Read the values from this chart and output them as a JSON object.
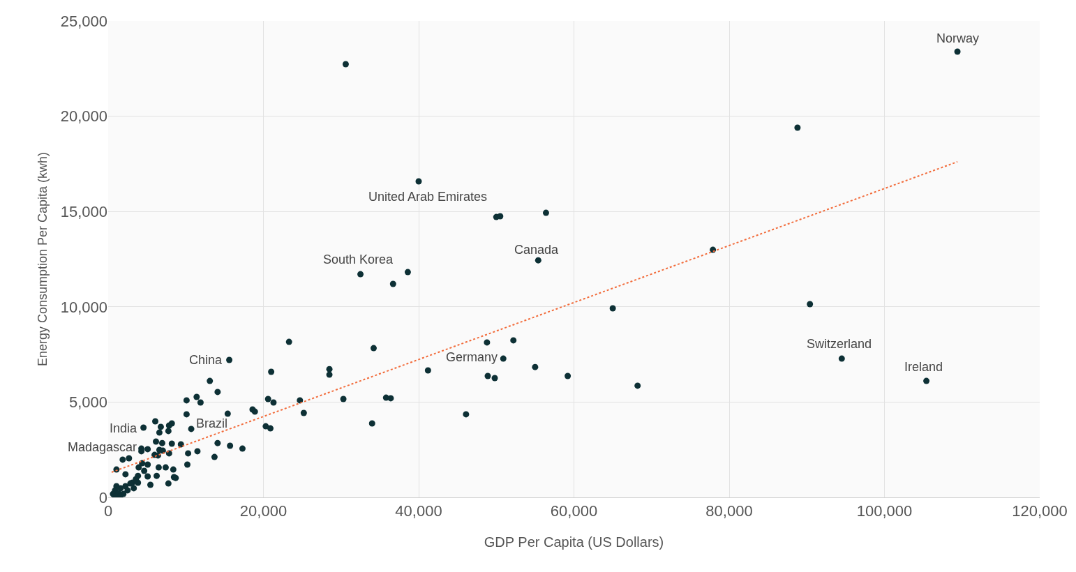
{
  "chart_data": {
    "type": "scatter",
    "xlabel": "GDP Per Capita (US Dollars)",
    "ylabel": "Energy Consumption Per Capita (kwh)",
    "xlim": [
      0,
      120000
    ],
    "ylim": [
      0,
      25000
    ],
    "xticks": [
      0,
      {
        "value": 20000,
        "label": "20,000"
      },
      {
        "value": 40000,
        "label": "40,000"
      },
      {
        "value": 60000,
        "label": "60,000"
      },
      {
        "value": 80000,
        "label": "80,000"
      },
      {
        "value": 100000,
        "label": "100,000"
      },
      {
        "value": 120000,
        "label": "120,000"
      }
    ],
    "yticks": [
      0,
      {
        "value": 5000,
        "label": "5,000"
      },
      {
        "value": 10000,
        "label": "10,000"
      },
      {
        "value": 15000,
        "label": "15,000"
      },
      {
        "value": 20000,
        "label": "20,000"
      },
      {
        "value": 25000,
        "label": "25,000"
      }
    ],
    "grid": true,
    "marker": "circle",
    "series": [
      {
        "color": "#0d3035",
        "x": [
          109400,
          30600,
          88800,
          40000,
          50000,
          50500,
          56400,
          77900,
          55400,
          38600,
          32500,
          36700,
          90400,
          65000,
          23300,
          52200,
          48800,
          34200,
          50900,
          94500,
          15600,
          21000,
          28500,
          28500,
          41200,
          55000,
          48900,
          49800,
          59200,
          105400,
          68200,
          13100,
          14100,
          11400,
          11900,
          10100,
          20600,
          21300,
          24700,
          30300,
          35800,
          36400,
          15400,
          18600,
          18900,
          25200,
          10100,
          46100,
          34000,
          20300,
          20900,
          10700,
          14100,
          17300,
          13700,
          11500,
          10200,
          10300,
          8700,
          4550,
          6070,
          6780,
          6600,
          7760,
          7850,
          8200,
          6160,
          6960,
          8200,
          9370,
          4280,
          5090,
          4280,
          6600,
          7050,
          5980,
          6420,
          7850,
          1870,
          2680,
          1070,
          4370,
          5090,
          3930,
          4640,
          6510,
          7410,
          8390,
          2230,
          3840,
          5090,
          6250,
          8480,
          5440,
          7760,
          3120,
          3570,
          2860,
          2230,
          1610,
          1070,
          890,
          620,
          1340,
          1960,
          2500,
          890,
          1520,
          3300,
          3840,
          15700
        ],
        "values": [
          23390,
          22730,
          19400,
          16580,
          14710,
          14750,
          14930,
          12990,
          12440,
          11820,
          11710,
          11200,
          10140,
          9920,
          8160,
          8240,
          8130,
          7830,
          7280,
          7280,
          7210,
          6590,
          6730,
          6440,
          6660,
          6840,
          6370,
          6260,
          6370,
          6110,
          5860,
          6110,
          5530,
          5270,
          4980,
          5090,
          5160,
          4980,
          5090,
          5160,
          5230,
          5200,
          4390,
          4610,
          4500,
          4430,
          4360,
          4360,
          3880,
          3730,
          3620,
          3590,
          2850,
          2560,
          2120,
          2420,
          1720,
          2310,
          1020,
          3660,
          3990,
          3700,
          3400,
          3480,
          3770,
          3880,
          2930,
          2850,
          2820,
          2780,
          2560,
          2530,
          2420,
          2490,
          2450,
          2230,
          2200,
          2310,
          1980,
          2050,
          1460,
          1790,
          1720,
          1570,
          1390,
          1570,
          1570,
          1460,
          1210,
          1130,
          1100,
          1130,
          1060,
          660,
          730,
          770,
          950,
          730,
          590,
          480,
          590,
          370,
          180,
          220,
          180,
          370,
          40,
          40,
          480,
          770,
          2710
        ]
      },
      {
        "type": "line",
        "color": "#f26b3a",
        "line_style": "dotted",
        "marker": "none",
        "x": [
          450,
          109400
        ],
        "values": [
          1320,
          17610
        ]
      }
    ],
    "annotations": [
      {
        "text": "Norway",
        "x": 109400,
        "y": 23390
      },
      {
        "text": "United Arab Emirates",
        "x": 40000,
        "y": 16580
      },
      {
        "text": "South Korea",
        "x": 32500,
        "y": 11710
      },
      {
        "text": "Canada",
        "x": 55400,
        "y": 12440
      },
      {
        "text": "China",
        "x": 15600,
        "y": 7210
      },
      {
        "text": "Germany",
        "x": 50900,
        "y": 7280
      },
      {
        "text": "Switzerland",
        "x": 94500,
        "y": 7280
      },
      {
        "text": "Ireland",
        "x": 105400,
        "y": 6110
      },
      {
        "text": "India",
        "x": 4550,
        "y": 3660
      },
      {
        "text": "Madagascar",
        "x": 4280,
        "y": 2560
      },
      {
        "text": "Brazil",
        "x": 10700,
        "y": 3590
      }
    ]
  }
}
